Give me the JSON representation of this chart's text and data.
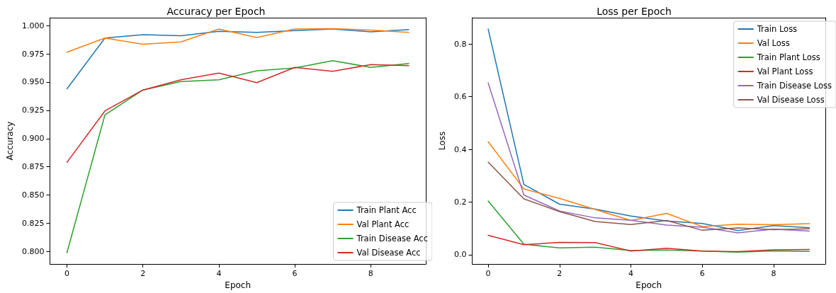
{
  "chart_data": [
    {
      "type": "line",
      "title": "Accuracy per Epoch",
      "xlabel": "Epoch",
      "ylabel": "Accuracy",
      "x": [
        0,
        1,
        2,
        3,
        4,
        5,
        6,
        7,
        8,
        9
      ],
      "xlim": [
        -0.45,
        9.45
      ],
      "xticks": [
        0,
        2,
        4,
        6,
        8
      ],
      "ylim": [
        0.789,
        1.007
      ],
      "yticks": [
        {
          "value": 0.8,
          "label": "0.800"
        },
        {
          "value": 0.825,
          "label": "0.825"
        },
        {
          "value": 0.85,
          "label": "0.850"
        },
        {
          "value": 0.875,
          "label": "0.875"
        },
        {
          "value": 0.9,
          "label": "0.900"
        },
        {
          "value": 0.925,
          "label": "0.925"
        },
        {
          "value": 0.95,
          "label": "0.950"
        },
        {
          "value": 0.975,
          "label": "0.975"
        },
        {
          "value": 1.0,
          "label": "1.000"
        }
      ],
      "grid": false,
      "legend": "bottom right",
      "marker": "none",
      "line_style": "solid",
      "series": [
        {
          "name": "Train Plant Acc",
          "color": "#1f77b4",
          "values": [
            0.944,
            0.989,
            0.992,
            0.991,
            0.995,
            0.994,
            0.9955,
            0.997,
            0.9945,
            0.9965
          ]
        },
        {
          "name": "Val Plant Acc",
          "color": "#ff7f0e",
          "values": [
            0.9765,
            0.989,
            0.9835,
            0.9855,
            0.997,
            0.9895,
            0.997,
            0.9973,
            0.996,
            0.994
          ]
        },
        {
          "name": "Train Disease Acc",
          "color": "#2ca02c",
          "values": [
            0.799,
            0.921,
            0.943,
            0.9505,
            0.952,
            0.96,
            0.9625,
            0.969,
            0.963,
            0.9665
          ]
        },
        {
          "name": "Val Disease Acc",
          "color": "#d62728",
          "values": [
            0.879,
            0.9245,
            0.943,
            0.952,
            0.958,
            0.9495,
            0.963,
            0.9595,
            0.9655,
            0.9645
          ]
        }
      ]
    },
    {
      "type": "line",
      "title": "Loss per Epoch",
      "xlabel": "Epoch",
      "ylabel": "Loss",
      "x": [
        0,
        1,
        2,
        3,
        4,
        5,
        6,
        7,
        8,
        9
      ],
      "xlim": [
        -0.45,
        9.45
      ],
      "xticks": [
        0,
        2,
        4,
        6,
        8
      ],
      "ylim": [
        -0.035,
        0.9
      ],
      "yticks": [
        {
          "value": 0,
          "label": "0.0"
        },
        {
          "value": 0.2,
          "label": "0.2"
        },
        {
          "value": 0.4,
          "label": "0.4"
        },
        {
          "value": 0.6,
          "label": "0.6"
        },
        {
          "value": 0.8,
          "label": "0.8"
        }
      ],
      "grid": false,
      "legend": "top right",
      "marker": "none",
      "line_style": "solid",
      "series": [
        {
          "name": "Train Loss",
          "color": "#1f77b4",
          "values": [
            0.857,
            0.267,
            0.192,
            0.173,
            0.147,
            0.128,
            0.119,
            0.092,
            0.111,
            0.103
          ]
        },
        {
          "name": "Val Loss",
          "color": "#ff7f0e",
          "values": [
            0.429,
            0.25,
            0.214,
            0.172,
            0.13,
            0.157,
            0.107,
            0.116,
            0.114,
            0.118
          ]
        },
        {
          "name": "Train Plant Loss",
          "color": "#2ca02c",
          "values": [
            0.204,
            0.04,
            0.026,
            0.029,
            0.016,
            0.018,
            0.014,
            0.01,
            0.015,
            0.013
          ]
        },
        {
          "name": "Val Plant Loss",
          "color": "#d62728",
          "values": [
            0.074,
            0.038,
            0.047,
            0.046,
            0.014,
            0.025,
            0.014,
            0.012,
            0.019,
            0.02
          ]
        },
        {
          "name": "Train Disease Loss",
          "color": "#9467bd",
          "values": [
            0.652,
            0.227,
            0.166,
            0.14,
            0.131,
            0.113,
            0.105,
            0.083,
            0.097,
            0.09
          ]
        },
        {
          "name": "Val Disease Loss",
          "color": "#8c564b",
          "values": [
            0.352,
            0.212,
            0.164,
            0.126,
            0.115,
            0.13,
            0.093,
            0.102,
            0.095,
            0.099
          ]
        }
      ]
    }
  ]
}
